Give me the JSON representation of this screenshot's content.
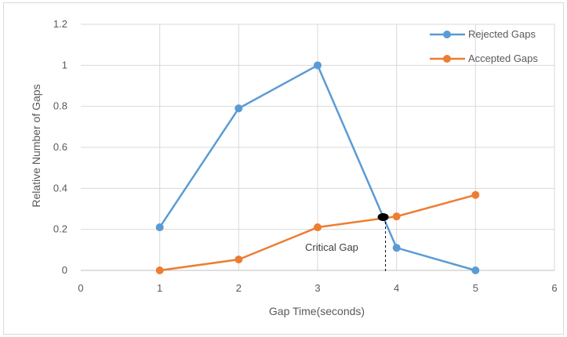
{
  "chart_data": {
    "type": "line",
    "xlabel": "Gap Time(seconds)",
    "ylabel": "Relative Number of Gaps",
    "xlim": [
      0,
      6
    ],
    "ylim": [
      0,
      1.2
    ],
    "x_ticks": [
      "0",
      "1",
      "2",
      "3",
      "4",
      "5",
      "6"
    ],
    "y_ticks": [
      "0",
      "0.2",
      "0.4",
      "0.6",
      "0.8",
      "1",
      "1.2"
    ],
    "grid": true,
    "legend_position": "top-right",
    "series": [
      {
        "name": "Rejected Gaps",
        "color": "#5b9bd5",
        "x": [
          1,
          2,
          3,
          4,
          5
        ],
        "y": [
          0.21,
          0.79,
          1.0,
          0.11,
          0.0
        ]
      },
      {
        "name": "Accepted Gaps",
        "color": "#ed7d31",
        "x": [
          1,
          2,
          3,
          4,
          5
        ],
        "y": [
          0.0,
          0.053,
          0.21,
          0.263,
          0.368
        ]
      }
    ],
    "annotation": {
      "text": "Critical Gap",
      "x": 3.83,
      "y": 0.26
    }
  }
}
